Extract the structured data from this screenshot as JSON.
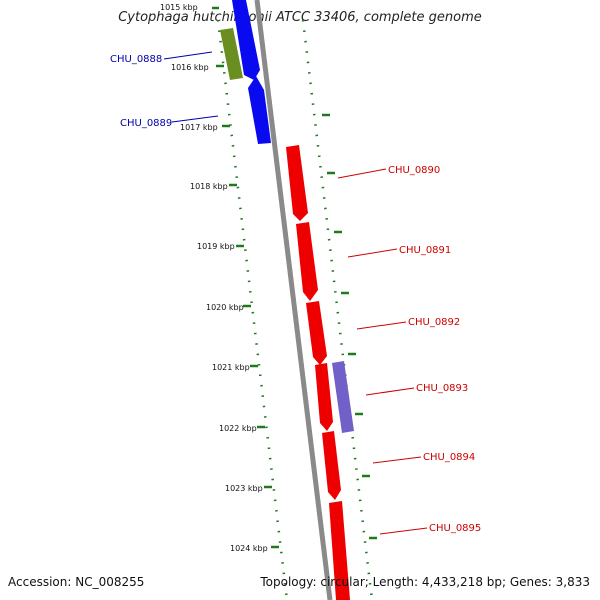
{
  "title": "Cytophaga hutchinsonii ATCC 33406, complete genome",
  "footer": {
    "accession": "Accession: NC_008255",
    "summary": "Topology: circular; Length: 4,433,218 bp; Genes: 3,833"
  },
  "colors": {
    "backbone": "#8a8a8a",
    "ticks": "#1f7a1f",
    "forward_cds": "#ee0000",
    "reverse_cds": "#0a0af0",
    "other_feature_green": "#6b8e23",
    "other_feature_purple": "#7060c8",
    "label_blue": "#0000aa",
    "label_red": "#cc0000"
  },
  "kbp_labels": [
    "1015 kbp",
    "1016 kbp",
    "1017 kbp",
    "1018 kbp",
    "1019 kbp",
    "1020 kbp",
    "1021 kbp",
    "1022 kbp",
    "1023 kbp",
    "1024 kbp"
  ],
  "genes_left": [
    "CHU_0888",
    "CHU_0889"
  ],
  "genes_right": [
    "CHU_0890",
    "CHU_0891",
    "CHU_0892",
    "CHU_0893",
    "CHU_0894",
    "CHU_0895"
  ]
}
